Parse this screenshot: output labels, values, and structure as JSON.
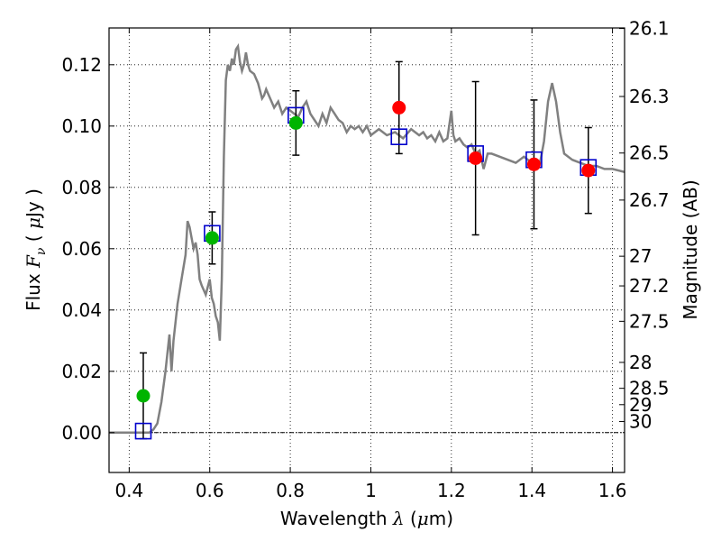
{
  "chart_data": {
    "type": "scatter",
    "xlabel": {
      "prefix": "Wavelength ",
      "symbol": "λ",
      "open": " (",
      "unit_symbol": "μ",
      "unit": "m",
      "close": ")"
    },
    "ylabel": {
      "prefix": "Flux ",
      "symbol": "F",
      "sub": "ν",
      "open": " ( ",
      "unit_symbol": "μ",
      "unit": "Jy",
      "close": " )"
    },
    "y2label": "Magnitude (AB)",
    "xlim": [
      0.35,
      1.63
    ],
    "ylim": [
      -0.013,
      0.132
    ],
    "xticks": [
      {
        "v": 0.4,
        "label": "0.4"
      },
      {
        "v": 0.6,
        "label": "0.6"
      },
      {
        "v": 0.8,
        "label": "0.8"
      },
      {
        "v": 1.0,
        "label": "1"
      },
      {
        "v": 1.2,
        "label": "1.2"
      },
      {
        "v": 1.4,
        "label": "1.4"
      },
      {
        "v": 1.6,
        "label": "1.6"
      }
    ],
    "yticks": [
      {
        "v": 0.0,
        "label": "0.00"
      },
      {
        "v": 0.02,
        "label": "0.02"
      },
      {
        "v": 0.04,
        "label": "0.04"
      },
      {
        "v": 0.06,
        "label": "0.06"
      },
      {
        "v": 0.08,
        "label": "0.08"
      },
      {
        "v": 0.1,
        "label": "0.10"
      },
      {
        "v": 0.12,
        "label": "0.12"
      }
    ],
    "mag_ticks": [
      {
        "mag": 26.1,
        "label": "26.1"
      },
      {
        "mag": 26.3,
        "label": "26.3"
      },
      {
        "mag": 26.5,
        "label": "26.5"
      },
      {
        "mag": 26.7,
        "label": "26.7"
      },
      {
        "mag": 27.0,
        "label": "27"
      },
      {
        "mag": 27.2,
        "label": "27.2"
      },
      {
        "mag": 27.5,
        "label": "27.5"
      },
      {
        "mag": 28.0,
        "label": "28"
      },
      {
        "mag": 28.5,
        "label": "28.5"
      },
      {
        "mag": 29.0,
        "label": "29"
      },
      {
        "mag": 30.0,
        "label": "30"
      }
    ],
    "grid": true,
    "zero_line": true,
    "colors": {
      "model": "#808080",
      "green": "#00b400",
      "red": "#ff0000",
      "box": "#0000cc",
      "error": "#000000"
    },
    "model_sed": [
      [
        0.35,
        0.0
      ],
      [
        0.45,
        0.0
      ],
      [
        0.46,
        0.001
      ],
      [
        0.47,
        0.003
      ],
      [
        0.48,
        0.01
      ],
      [
        0.49,
        0.02
      ],
      [
        0.5,
        0.032
      ],
      [
        0.505,
        0.02
      ],
      [
        0.51,
        0.03
      ],
      [
        0.52,
        0.042
      ],
      [
        0.53,
        0.05
      ],
      [
        0.54,
        0.058
      ],
      [
        0.545,
        0.069
      ],
      [
        0.55,
        0.067
      ],
      [
        0.56,
        0.06
      ],
      [
        0.565,
        0.062
      ],
      [
        0.57,
        0.058
      ],
      [
        0.575,
        0.05
      ],
      [
        0.58,
        0.048
      ],
      [
        0.59,
        0.045
      ],
      [
        0.6,
        0.05
      ],
      [
        0.605,
        0.044
      ],
      [
        0.61,
        0.042
      ],
      [
        0.615,
        0.038
      ],
      [
        0.62,
        0.036
      ],
      [
        0.625,
        0.03
      ],
      [
        0.63,
        0.05
      ],
      [
        0.635,
        0.09
      ],
      [
        0.64,
        0.115
      ],
      [
        0.645,
        0.12
      ],
      [
        0.65,
        0.118
      ],
      [
        0.655,
        0.122
      ],
      [
        0.66,
        0.12
      ],
      [
        0.665,
        0.125
      ],
      [
        0.67,
        0.126
      ],
      [
        0.675,
        0.121
      ],
      [
        0.68,
        0.118
      ],
      [
        0.685,
        0.12
      ],
      [
        0.69,
        0.124
      ],
      [
        0.695,
        0.12
      ],
      [
        0.7,
        0.118
      ],
      [
        0.71,
        0.117
      ],
      [
        0.72,
        0.114
      ],
      [
        0.73,
        0.109
      ],
      [
        0.735,
        0.11
      ],
      [
        0.74,
        0.112
      ],
      [
        0.75,
        0.109
      ],
      [
        0.76,
        0.106
      ],
      [
        0.77,
        0.108
      ],
      [
        0.78,
        0.104
      ],
      [
        0.79,
        0.106
      ],
      [
        0.8,
        0.105
      ],
      [
        0.81,
        0.104
      ],
      [
        0.82,
        0.103
      ],
      [
        0.83,
        0.106
      ],
      [
        0.84,
        0.108
      ],
      [
        0.85,
        0.104
      ],
      [
        0.86,
        0.102
      ],
      [
        0.87,
        0.1
      ],
      [
        0.88,
        0.104
      ],
      [
        0.89,
        0.101
      ],
      [
        0.9,
        0.106
      ],
      [
        0.91,
        0.104
      ],
      [
        0.92,
        0.102
      ],
      [
        0.93,
        0.101
      ],
      [
        0.94,
        0.098
      ],
      [
        0.95,
        0.1
      ],
      [
        0.96,
        0.099
      ],
      [
        0.97,
        0.1
      ],
      [
        0.98,
        0.098
      ],
      [
        0.99,
        0.1
      ],
      [
        1.0,
        0.097
      ],
      [
        1.02,
        0.099
      ],
      [
        1.04,
        0.097
      ],
      [
        1.06,
        0.098
      ],
      [
        1.08,
        0.096
      ],
      [
        1.1,
        0.099
      ],
      [
        1.12,
        0.097
      ],
      [
        1.13,
        0.098
      ],
      [
        1.14,
        0.096
      ],
      [
        1.15,
        0.097
      ],
      [
        1.16,
        0.095
      ],
      [
        1.17,
        0.098
      ],
      [
        1.18,
        0.095
      ],
      [
        1.19,
        0.096
      ],
      [
        1.2,
        0.105
      ],
      [
        1.205,
        0.097
      ],
      [
        1.21,
        0.095
      ],
      [
        1.22,
        0.096
      ],
      [
        1.23,
        0.094
      ],
      [
        1.24,
        0.093
      ],
      [
        1.25,
        0.094
      ],
      [
        1.26,
        0.091
      ],
      [
        1.27,
        0.092
      ],
      [
        1.28,
        0.086
      ],
      [
        1.29,
        0.091
      ],
      [
        1.3,
        0.091
      ],
      [
        1.32,
        0.09
      ],
      [
        1.34,
        0.089
      ],
      [
        1.36,
        0.088
      ],
      [
        1.38,
        0.09
      ],
      [
        1.4,
        0.088
      ],
      [
        1.42,
        0.088
      ],
      [
        1.43,
        0.095
      ],
      [
        1.44,
        0.108
      ],
      [
        1.45,
        0.114
      ],
      [
        1.46,
        0.108
      ],
      [
        1.47,
        0.098
      ],
      [
        1.48,
        0.091
      ],
      [
        1.5,
        0.089
      ],
      [
        1.52,
        0.088
      ],
      [
        1.54,
        0.087
      ],
      [
        1.56,
        0.087
      ],
      [
        1.58,
        0.086
      ],
      [
        1.6,
        0.086
      ],
      [
        1.63,
        0.085
      ]
    ],
    "green_points": [
      {
        "x": 0.435,
        "y": 0.012,
        "yerr": 0.014
      },
      {
        "x": 0.606,
        "y": 0.0635,
        "yerr": 0.0085
      },
      {
        "x": 0.814,
        "y": 0.101,
        "yerr": 0.0105
      }
    ],
    "red_points": [
      {
        "x": 1.07,
        "y": 0.106,
        "yerr": 0.015
      },
      {
        "x": 1.26,
        "y": 0.0895,
        "yerr": 0.025
      },
      {
        "x": 1.405,
        "y": 0.0875,
        "yerr": 0.021
      },
      {
        "x": 1.54,
        "y": 0.0855,
        "yerr": 0.014
      }
    ],
    "model_boxes": [
      {
        "x": 0.435,
        "y": 0.0005
      },
      {
        "x": 0.606,
        "y": 0.065
      },
      {
        "x": 0.814,
        "y": 0.1035
      },
      {
        "x": 1.07,
        "y": 0.0965
      },
      {
        "x": 1.26,
        "y": 0.091
      },
      {
        "x": 1.405,
        "y": 0.089
      },
      {
        "x": 1.54,
        "y": 0.0865
      }
    ]
  }
}
